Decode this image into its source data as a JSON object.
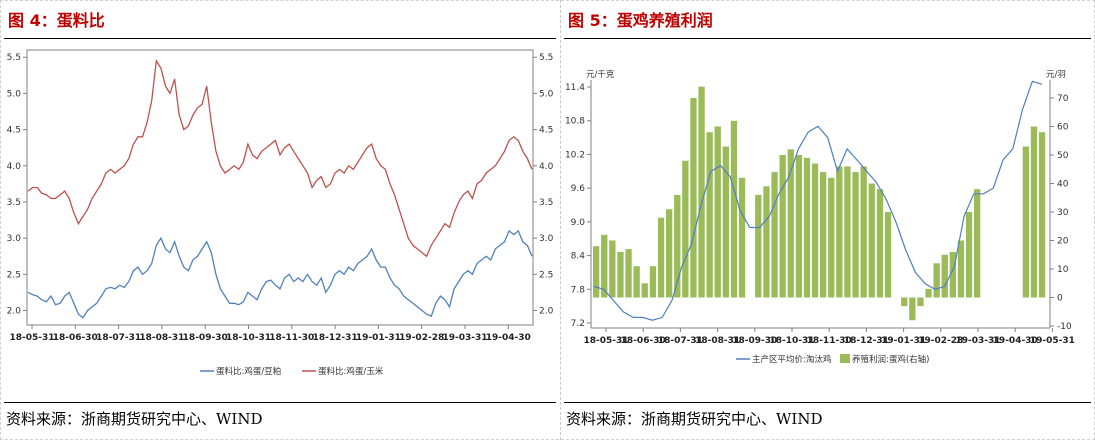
{
  "panels": [
    {
      "title": "图 4：蛋料比",
      "source": "资料来源：浙商期货研究中心、WIND"
    },
    {
      "title": "图 5：蛋鸡养殖利润",
      "source": "资料来源：浙商期货研究中心、WIND"
    }
  ],
  "chart_data": [
    {
      "type": "line",
      "title": "",
      "x_ticks": [
        "18-05-31",
        "18-06-30",
        "18-07-31",
        "18-08-31",
        "18-09-30",
        "18-10-31",
        "18-11-30",
        "18-12-31",
        "19-01-31",
        "19-02-28",
        "19-03-31",
        "19-04-30"
      ],
      "ylim": [
        1.8,
        5.6
      ],
      "y_ticks": [
        "5.5",
        "5.0",
        "4.5",
        "4.0",
        "3.5",
        "3.0",
        "2.5",
        "2.0"
      ],
      "y2_ticks": [
        "5.5",
        "5.0",
        "4.5",
        "4.0",
        "3.5",
        "3.0",
        "2.5",
        "2.0"
      ],
      "legend_position": "bottom",
      "series": [
        {
          "name": "蛋料比:鸡蛋/豆粕",
          "color": "#4f81bd",
          "values": [
            2.25,
            2.22,
            2.2,
            2.15,
            2.12,
            2.2,
            2.08,
            2.1,
            2.2,
            2.25,
            2.1,
            1.95,
            1.9,
            2.0,
            2.05,
            2.1,
            2.2,
            2.3,
            2.32,
            2.3,
            2.35,
            2.32,
            2.4,
            2.55,
            2.6,
            2.5,
            2.55,
            2.65,
            2.9,
            3.0,
            2.85,
            2.8,
            2.95,
            2.75,
            2.6,
            2.55,
            2.7,
            2.75,
            2.85,
            2.95,
            2.8,
            2.5,
            2.3,
            2.2,
            2.1,
            2.1,
            2.08,
            2.12,
            2.25,
            2.2,
            2.15,
            2.3,
            2.4,
            2.42,
            2.35,
            2.3,
            2.45,
            2.5,
            2.4,
            2.45,
            2.4,
            2.5,
            2.4,
            2.35,
            2.45,
            2.25,
            2.35,
            2.5,
            2.55,
            2.5,
            2.6,
            2.55,
            2.65,
            2.7,
            2.75,
            2.85,
            2.7,
            2.6,
            2.6,
            2.45,
            2.35,
            2.3,
            2.2,
            2.15,
            2.1,
            2.05,
            2.0,
            1.95,
            1.92,
            2.1,
            2.2,
            2.15,
            2.05,
            2.3,
            2.4,
            2.5,
            2.55,
            2.5,
            2.65,
            2.7,
            2.75,
            2.7,
            2.85,
            2.9,
            2.95,
            3.1,
            3.05,
            3.1,
            2.95,
            2.9,
            2.75
          ]
        },
        {
          "name": "蛋料比:鸡蛋/玉米",
          "color": "#c0504d",
          "values": [
            3.65,
            3.7,
            3.7,
            3.62,
            3.6,
            3.55,
            3.55,
            3.6,
            3.65,
            3.55,
            3.35,
            3.2,
            3.3,
            3.4,
            3.55,
            3.65,
            3.75,
            3.9,
            3.95,
            3.9,
            3.95,
            4.0,
            4.1,
            4.3,
            4.4,
            4.4,
            4.6,
            4.9,
            5.45,
            5.35,
            5.1,
            5.0,
            5.2,
            4.7,
            4.5,
            4.55,
            4.7,
            4.8,
            4.85,
            5.1,
            4.6,
            4.2,
            4.0,
            3.9,
            3.95,
            4.0,
            3.95,
            4.05,
            4.3,
            4.15,
            4.1,
            4.2,
            4.25,
            4.3,
            4.35,
            4.15,
            4.25,
            4.3,
            4.2,
            4.1,
            4.0,
            3.9,
            3.7,
            3.8,
            3.85,
            3.7,
            3.75,
            3.9,
            3.95,
            3.9,
            4.0,
            3.95,
            4.05,
            4.15,
            4.25,
            4.3,
            4.1,
            4.0,
            3.95,
            3.75,
            3.6,
            3.4,
            3.2,
            3.0,
            2.9,
            2.85,
            2.8,
            2.75,
            2.9,
            3.0,
            3.1,
            3.2,
            3.15,
            3.35,
            3.5,
            3.6,
            3.65,
            3.55,
            3.75,
            3.8,
            3.9,
            3.95,
            4.0,
            4.1,
            4.2,
            4.35,
            4.4,
            4.35,
            4.2,
            4.1,
            3.95
          ]
        }
      ]
    },
    {
      "type": "bar+line",
      "x_ticks": [
        "18-05-31",
        "18-06-30",
        "18-07-31",
        "18-08-31",
        "18-09-30",
        "18-10-31",
        "18-11-30",
        "18-12-31",
        "19-01-31",
        "19-02-28",
        "19-03-31",
        "19-04-30",
        "19-05-31"
      ],
      "y_left_unit": "元/千克",
      "y_right_unit": "元/羽",
      "y_left_ticks": [
        "11.4",
        "10.8",
        "10.2",
        "9.6",
        "9.0",
        "8.4",
        "7.8",
        "7.2"
      ],
      "y_left_range": [
        7.2,
        11.4
      ],
      "y_right_ticks": [
        "70",
        "60",
        "50",
        "40",
        "30",
        "20",
        "10",
        "0",
        "-10"
      ],
      "y_right_range": [
        -10,
        70
      ],
      "legend_position": "bottom",
      "series": [
        {
          "name": "主产区平均价:淘汰鸡",
          "type": "line",
          "axis": "left",
          "color": "#4f81bd",
          "values": [
            7.85,
            7.8,
            7.6,
            7.4,
            7.3,
            7.3,
            7.25,
            7.3,
            7.6,
            8.2,
            8.6,
            9.3,
            9.9,
            10.0,
            9.8,
            9.2,
            8.9,
            8.9,
            9.1,
            9.5,
            9.8,
            10.3,
            10.6,
            10.7,
            10.5,
            9.9,
            10.3,
            10.1,
            9.9,
            9.7,
            9.4,
            9.0,
            8.5,
            8.1,
            7.9,
            7.8,
            7.85,
            8.2,
            9.1,
            9.5,
            9.5,
            9.6,
            10.1,
            10.3,
            11.0,
            11.5,
            11.45
          ]
        },
        {
          "name": "养殖利润:蛋鸡(右轴)",
          "type": "bar",
          "axis": "right",
          "color": "#9bbb59",
          "values": [
            18,
            22,
            20,
            16,
            17,
            11,
            5,
            11,
            28,
            31,
            36,
            48,
            70,
            74,
            58,
            60,
            53,
            62,
            42,
            0,
            36,
            39,
            44,
            50,
            52,
            50,
            49,
            47,
            44,
            42,
            46,
            46,
            44,
            46,
            40,
            38,
            30,
            0,
            -3,
            -8,
            -3,
            3,
            12,
            15,
            16,
            20,
            30,
            38,
            0,
            0,
            0,
            0,
            0,
            53,
            60,
            58
          ]
        }
      ]
    }
  ]
}
